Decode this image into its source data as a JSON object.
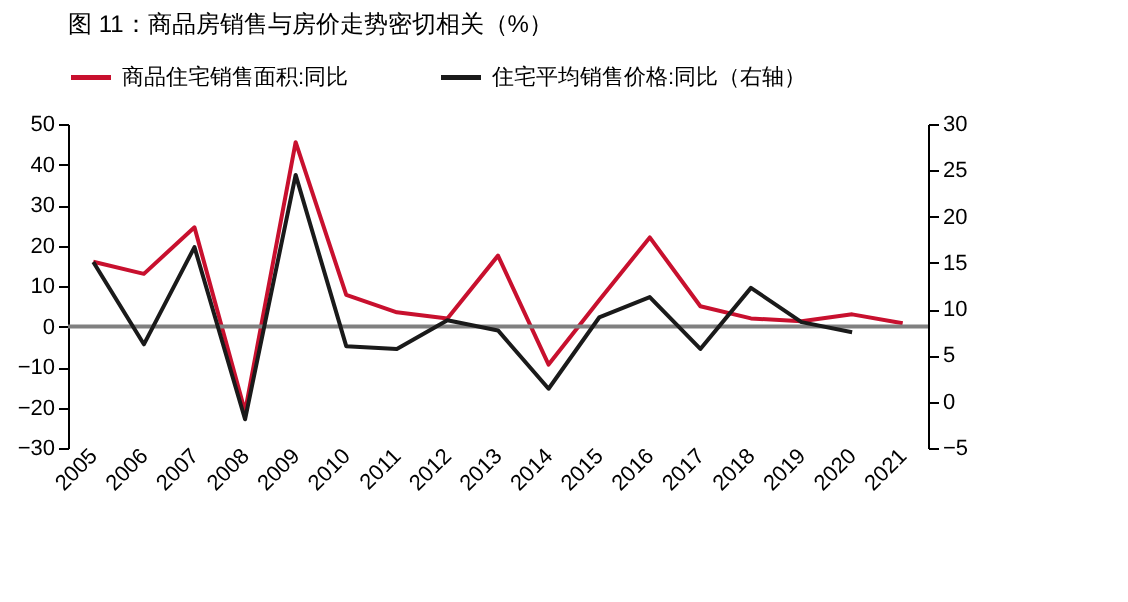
{
  "chart_data": {
    "type": "line",
    "title": "图 11：商品房销售与房价走势密切相关（%）",
    "categories": [
      "2005",
      "2006",
      "2007",
      "2008",
      "2009",
      "2010",
      "2011",
      "2012",
      "2013",
      "2014",
      "2015",
      "2016",
      "2017",
      "2018",
      "2019",
      "2020",
      "2021"
    ],
    "series": [
      {
        "name": "商品住宅销售面积:同比",
        "color": "#c8102e",
        "values": [
          16,
          13,
          24.5,
          -21,
          45.5,
          7.8,
          3.5,
          2,
          17.5,
          -9.4,
          6.5,
          22,
          5,
          2,
          1.3,
          3,
          0.8
        ]
      },
      {
        "name": "住宅平均销售价格:同比（右轴）",
        "color": "#1a1a1a",
        "axis": "y2",
        "values": [
          15.1,
          6.2,
          16.7,
          -1.9,
          24.5,
          6.0,
          5.7,
          8.8,
          7.7,
          1.4,
          9.1,
          11.3,
          5.7,
          12.3,
          8.6,
          7.5,
          null
        ]
      }
    ],
    "ylim": [
      -30,
      50
    ],
    "yticks": [
      -30,
      -20,
      -10,
      0,
      10,
      20,
      30,
      40,
      50
    ],
    "y2lim": [
      -5,
      30
    ],
    "y2ticks": [
      -5,
      0,
      5,
      10,
      15,
      20,
      25,
      30
    ],
    "ref_lines": [
      {
        "axis": "y",
        "value": 0,
        "color": "#808080"
      }
    ],
    "grid": false,
    "legend": "top",
    "marker": "none",
    "line_style": "solid"
  }
}
